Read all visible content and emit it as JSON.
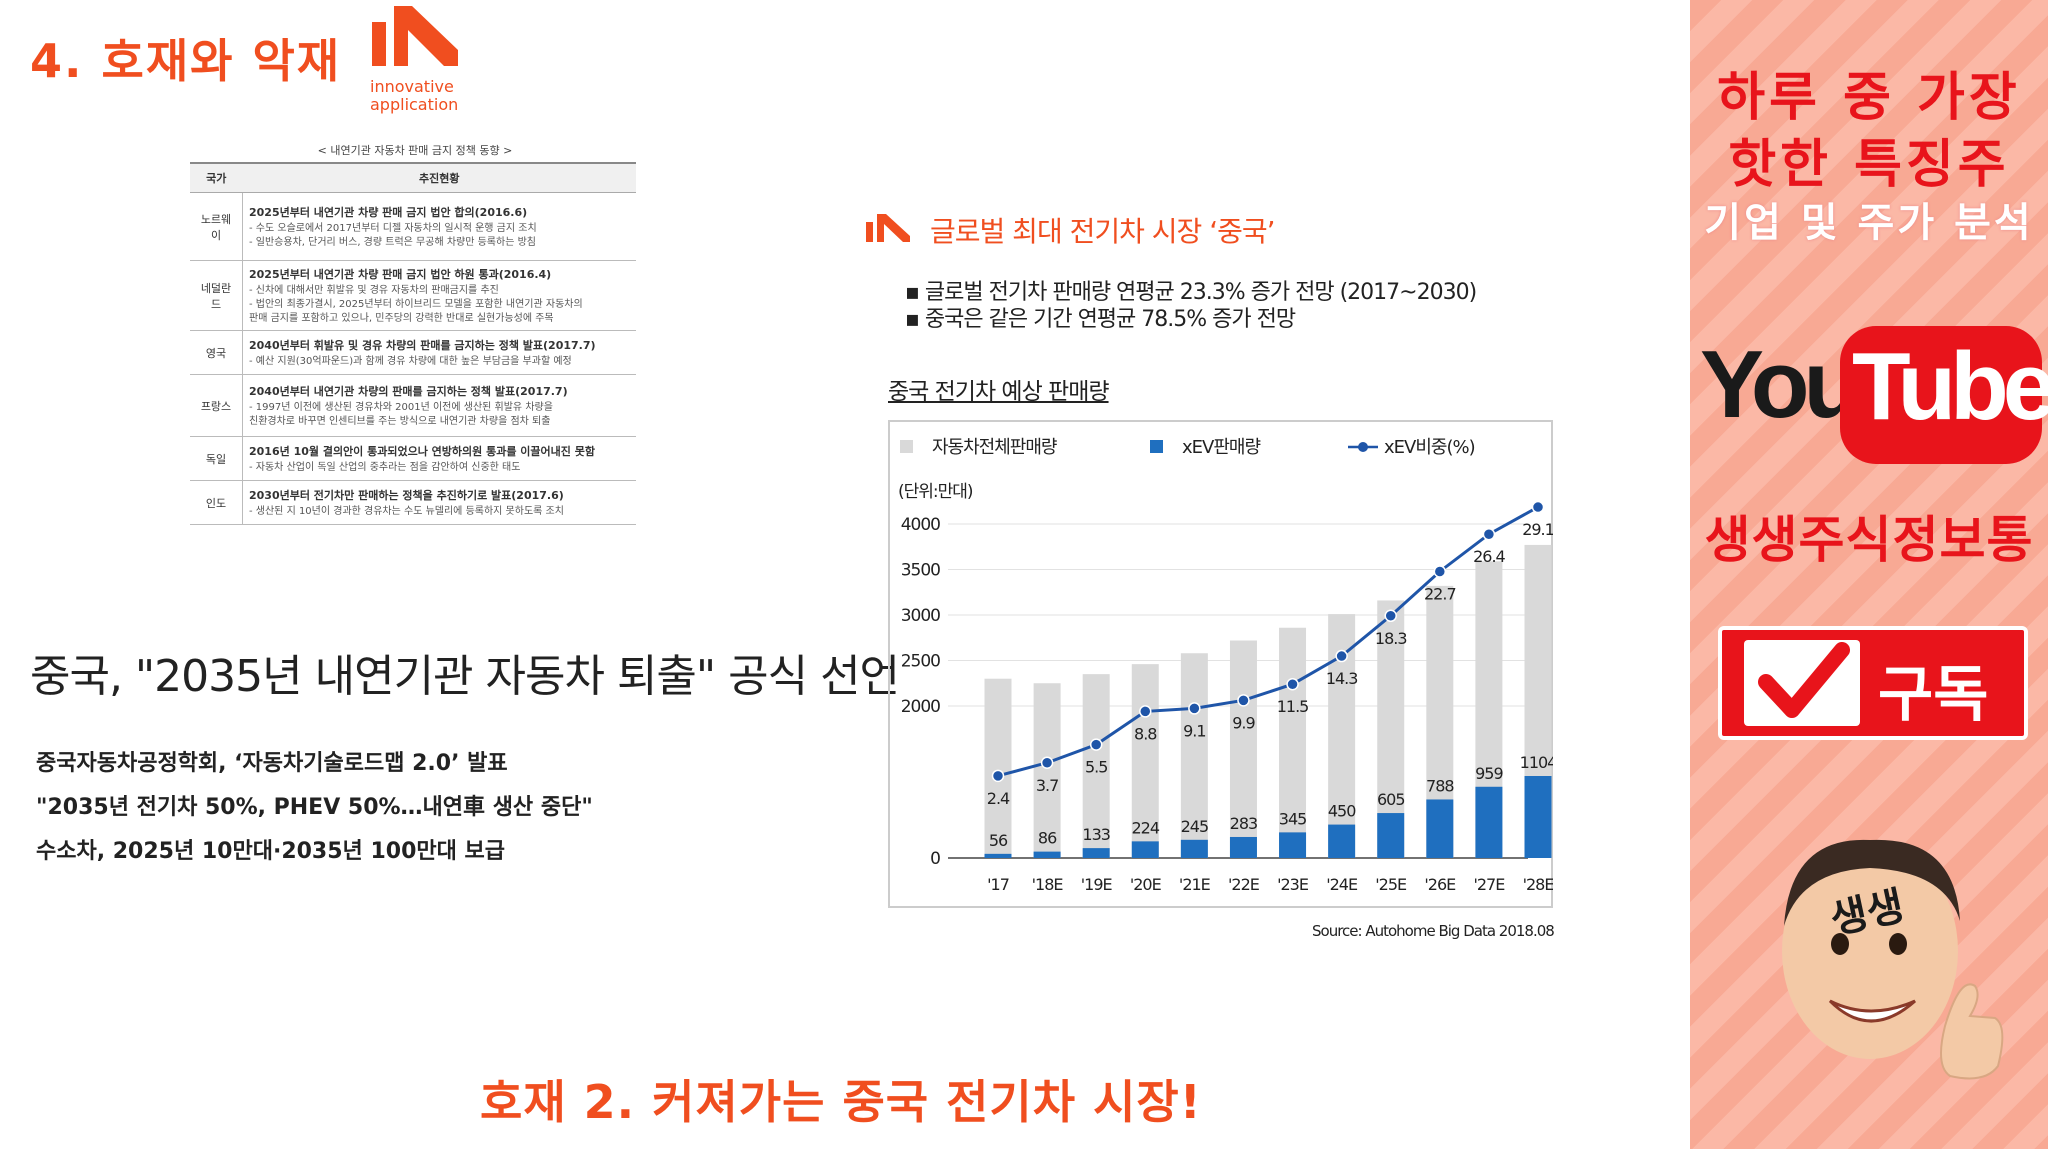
{
  "slide": {
    "title": "4. 호재와 악재",
    "logo_text_line1": "innovative",
    "logo_text_line2": "application",
    "bottom_banner": "호재 2. 커져가는 중국 전기차 시장!"
  },
  "policy_table": {
    "caption": "< 내연기관 자동차 판매 금지 정책 동향 >",
    "headers": [
      "국가",
      "추진현황"
    ],
    "rows": [
      {
        "country": "노르웨이",
        "main": "2025년부터 내연기관 차량 판매 금지 법안 합의(2016.6)",
        "sub": "- 수도 오슬로에서 2017년부터 디젤 자동차의 일시적 운행 금지 조치\n- 일반승용차, 단거리 버스, 경량 트럭은 무공해 차량만 등록하는 방침"
      },
      {
        "country": "네덜란드",
        "main": "2025년부터 내연기관 차량 판매 금지 법안 하원 통과(2016.4)",
        "sub": "- 신차에 대해서만 휘발유 및 경유 자동차의 판매금지를 추진\n- 법안의 최종가결시, 2025년부터 하이브리드 모델을 포함한 내연기관 자동차의\n판매 금지를 포함하고 있으나, 민주당의 강력한 반대로 실현가능성에 주목"
      },
      {
        "country": "영국",
        "main": "2040년부터 휘발유 및 경유 차량의 판매를 금지하는 정책 발표(2017.7)",
        "sub": "- 예산 지원(30억파운드)과 함께 경유 차량에 대한 높은 부담금을 부과할 예정"
      },
      {
        "country": "프랑스",
        "main": "2040년부터 내연기관 차량의 판매를 금지하는 정책 발표(2017.7)",
        "sub": "- 1997년 이전에 생산된 경유차와 2001년 이전에 생산된 휘발유 차량을\n친환경차로 바꾸면 인센티브를 주는 방식으로 내연기관 차량을 점차 퇴출"
      },
      {
        "country": "독일",
        "main": "2016년 10월 결의안이 통과되었으나 연방하의원 통과를 이끌어내진 못함",
        "sub": "- 자동차 산업이 독일 산업의 중추라는 점을 감안하여 신중한 태도"
      },
      {
        "country": "인도",
        "main": "2030년부터 전기차만 판매하는 정책을 추진하기로 발표(2017.6)",
        "sub": "- 생산된 지 10년이 경과한 경유차는 수도 뉴델리에 등록하지 못하도록 조치"
      }
    ]
  },
  "news": {
    "headline": "중국, \"2035년 내연기관 자동차 퇴출\" 공식 선언",
    "lines": [
      "중국자동차공정학회, ‘자동차기술로드맵 2.0’ 발표",
      "\"2035년 전기차 50%, PHEV 50%…내연車 생산 중단\"",
      "수소차, 2025년 10만대·2035년 100만대 보급"
    ]
  },
  "chart_section": {
    "title": "글로벌 최대 전기차 시장 ‘중국’",
    "bullets": [
      "글로벌 전기차 판매량 연평균 23.3% 증가 전망 (2017~2030)",
      "중국은 같은 기간 연평균 78.5% 증가 전망"
    ],
    "chart_title": "중국 전기차 예상 판매량",
    "source": "Source: Autohome Big Data 2018.08"
  },
  "chart_data": {
    "type": "bar",
    "unit_label": "(단위:만대)",
    "categories": [
      "'17",
      "'18E",
      "'19E",
      "'20E",
      "'21E",
      "'22E",
      "'23E",
      "'24E",
      "'25E",
      "'26E",
      "'27E",
      "'28E"
    ],
    "ylim": [
      0,
      4000
    ],
    "yticks": [
      0,
      2000,
      2500,
      3000,
      3500,
      4000
    ],
    "legend": [
      "자동차전체판매량",
      "xEV판매량",
      "xEV비중(%)"
    ],
    "series": [
      {
        "name": "자동차전체판매량",
        "color": "#d9d9d9",
        "values": [
          2300,
          2250,
          2350,
          2460,
          2580,
          2720,
          2860,
          3010,
          3160,
          3320,
          3590,
          3770
        ]
      },
      {
        "name": "xEV판매량",
        "color": "#1f6fbf",
        "values": [
          56,
          86,
          133,
          224,
          245,
          283,
          345,
          450,
          605,
          788,
          959,
          1104
        ]
      },
      {
        "name": "xEV비중(%)",
        "color": "#1f55a8",
        "values": [
          2.4,
          3.7,
          5.5,
          8.8,
          9.1,
          9.9,
          11.5,
          14.3,
          18.3,
          22.7,
          26.4,
          29.1
        ]
      }
    ]
  },
  "right_panel": {
    "title_line1": "하루 중 가장",
    "title_line2": "핫한 특징주",
    "title_line3": "기업 및 주가 분석",
    "youtube_you": "You",
    "youtube_tube": "Tube",
    "channel_name": "생생주식정보통",
    "subscribe_label": "구독",
    "avatar_text": "생생"
  },
  "colors": {
    "accent": "#f04e1f",
    "youtube_red": "#e8141b",
    "bar_gray": "#d9d9d9",
    "bar_blue": "#1f6fbf",
    "line_blue": "#1f55a8"
  }
}
